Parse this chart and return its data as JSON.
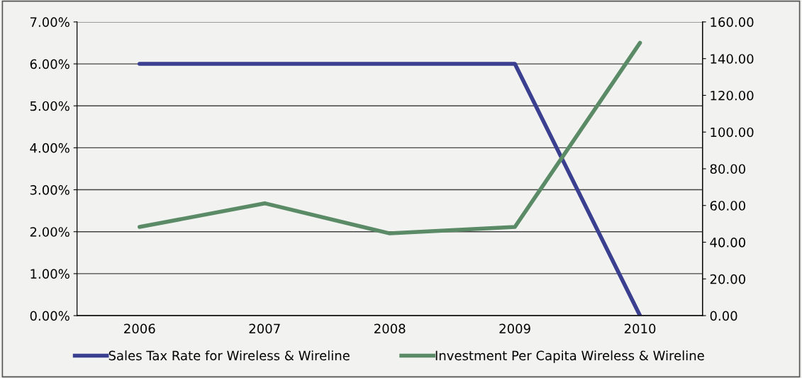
{
  "chart_data": {
    "type": "line",
    "categories": [
      "2006",
      "2007",
      "2008",
      "2009",
      "2010"
    ],
    "series": [
      {
        "name": "Sales Tax Rate for Wireless & Wireline",
        "color": "#3b3f8f",
        "values": [
          6.0,
          6.0,
          6.0,
          6.0,
          0.0
        ]
      },
      {
        "name": "Investment Per Capita Wireless & Wireline",
        "color": "#5a8a66",
        "values": [
          48.3,
          61.2,
          44.8,
          48.3,
          148.6
        ],
        "axis": "y2"
      }
    ],
    "ylim": [
      0,
      7
    ],
    "yticks": [
      {
        "value": 0,
        "label": "0.00%"
      },
      {
        "value": 1,
        "label": "1.00%"
      },
      {
        "value": 2,
        "label": "2.00%"
      },
      {
        "value": 3,
        "label": "3.00%"
      },
      {
        "value": 4,
        "label": "4.00%"
      },
      {
        "value": 5,
        "label": "5.00%"
      },
      {
        "value": 6,
        "label": "6.00%"
      },
      {
        "value": 7,
        "label": "7.00%"
      }
    ],
    "y2lim": [
      0,
      160
    ],
    "y2ticks": [
      {
        "value": 0,
        "label": "0.00"
      },
      {
        "value": 20,
        "label": "20.00"
      },
      {
        "value": 40,
        "label": "40.00"
      },
      {
        "value": 60,
        "label": "60.00"
      },
      {
        "value": 80,
        "label": "80.00"
      },
      {
        "value": 100,
        "label": "100.00"
      },
      {
        "value": 120,
        "label": "120.00"
      },
      {
        "value": 140,
        "label": "140.00"
      },
      {
        "value": 160,
        "label": "160.00"
      }
    ],
    "grid": "y",
    "legend": "bottom",
    "marker": "none",
    "line_style": "solid"
  }
}
